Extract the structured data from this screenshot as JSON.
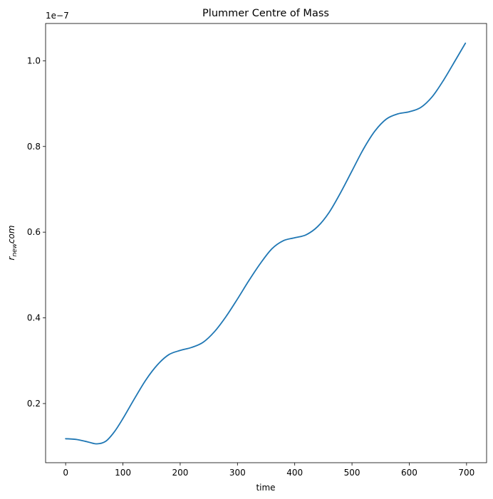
{
  "chart_data": {
    "type": "line",
    "title": "Plummer Centre of Mass",
    "xlabel": "time",
    "ylabel": {
      "base": "r",
      "subscript": "new",
      "suffix": "com"
    },
    "offset_text": "1e−7",
    "xlim": [
      -35,
      735
    ],
    "ylim": [
      0.062,
      1.087
    ],
    "xticks": [
      0,
      100,
      200,
      300,
      400,
      500,
      600,
      700
    ],
    "xtick_labels": [
      "0",
      "100",
      "200",
      "300",
      "400",
      "500",
      "600",
      "700"
    ],
    "yticks": [
      0.2,
      0.4,
      0.6,
      0.8,
      1.0
    ],
    "ytick_labels": [
      "0.2",
      "0.4",
      "0.6",
      "0.8",
      "1.0"
    ],
    "grid": false,
    "line_color": "#1f77b4",
    "series": [
      {
        "x": [
          0,
          20,
          40,
          55,
          70,
          85,
          100,
          120,
          140,
          160,
          180,
          200,
          220,
          240,
          260,
          280,
          300,
          320,
          340,
          360,
          380,
          400,
          420,
          440,
          460,
          480,
          500,
          520,
          540,
          560,
          580,
          600,
          620,
          640,
          660,
          680,
          698
        ],
        "y": [
          0.118,
          0.116,
          0.11,
          0.106,
          0.112,
          0.134,
          0.165,
          0.211,
          0.255,
          0.29,
          0.314,
          0.324,
          0.331,
          0.343,
          0.368,
          0.403,
          0.444,
          0.487,
          0.527,
          0.561,
          0.58,
          0.587,
          0.594,
          0.613,
          0.646,
          0.692,
          0.743,
          0.794,
          0.836,
          0.864,
          0.876,
          0.881,
          0.891,
          0.916,
          0.955,
          1.0,
          1.041
        ]
      }
    ]
  }
}
